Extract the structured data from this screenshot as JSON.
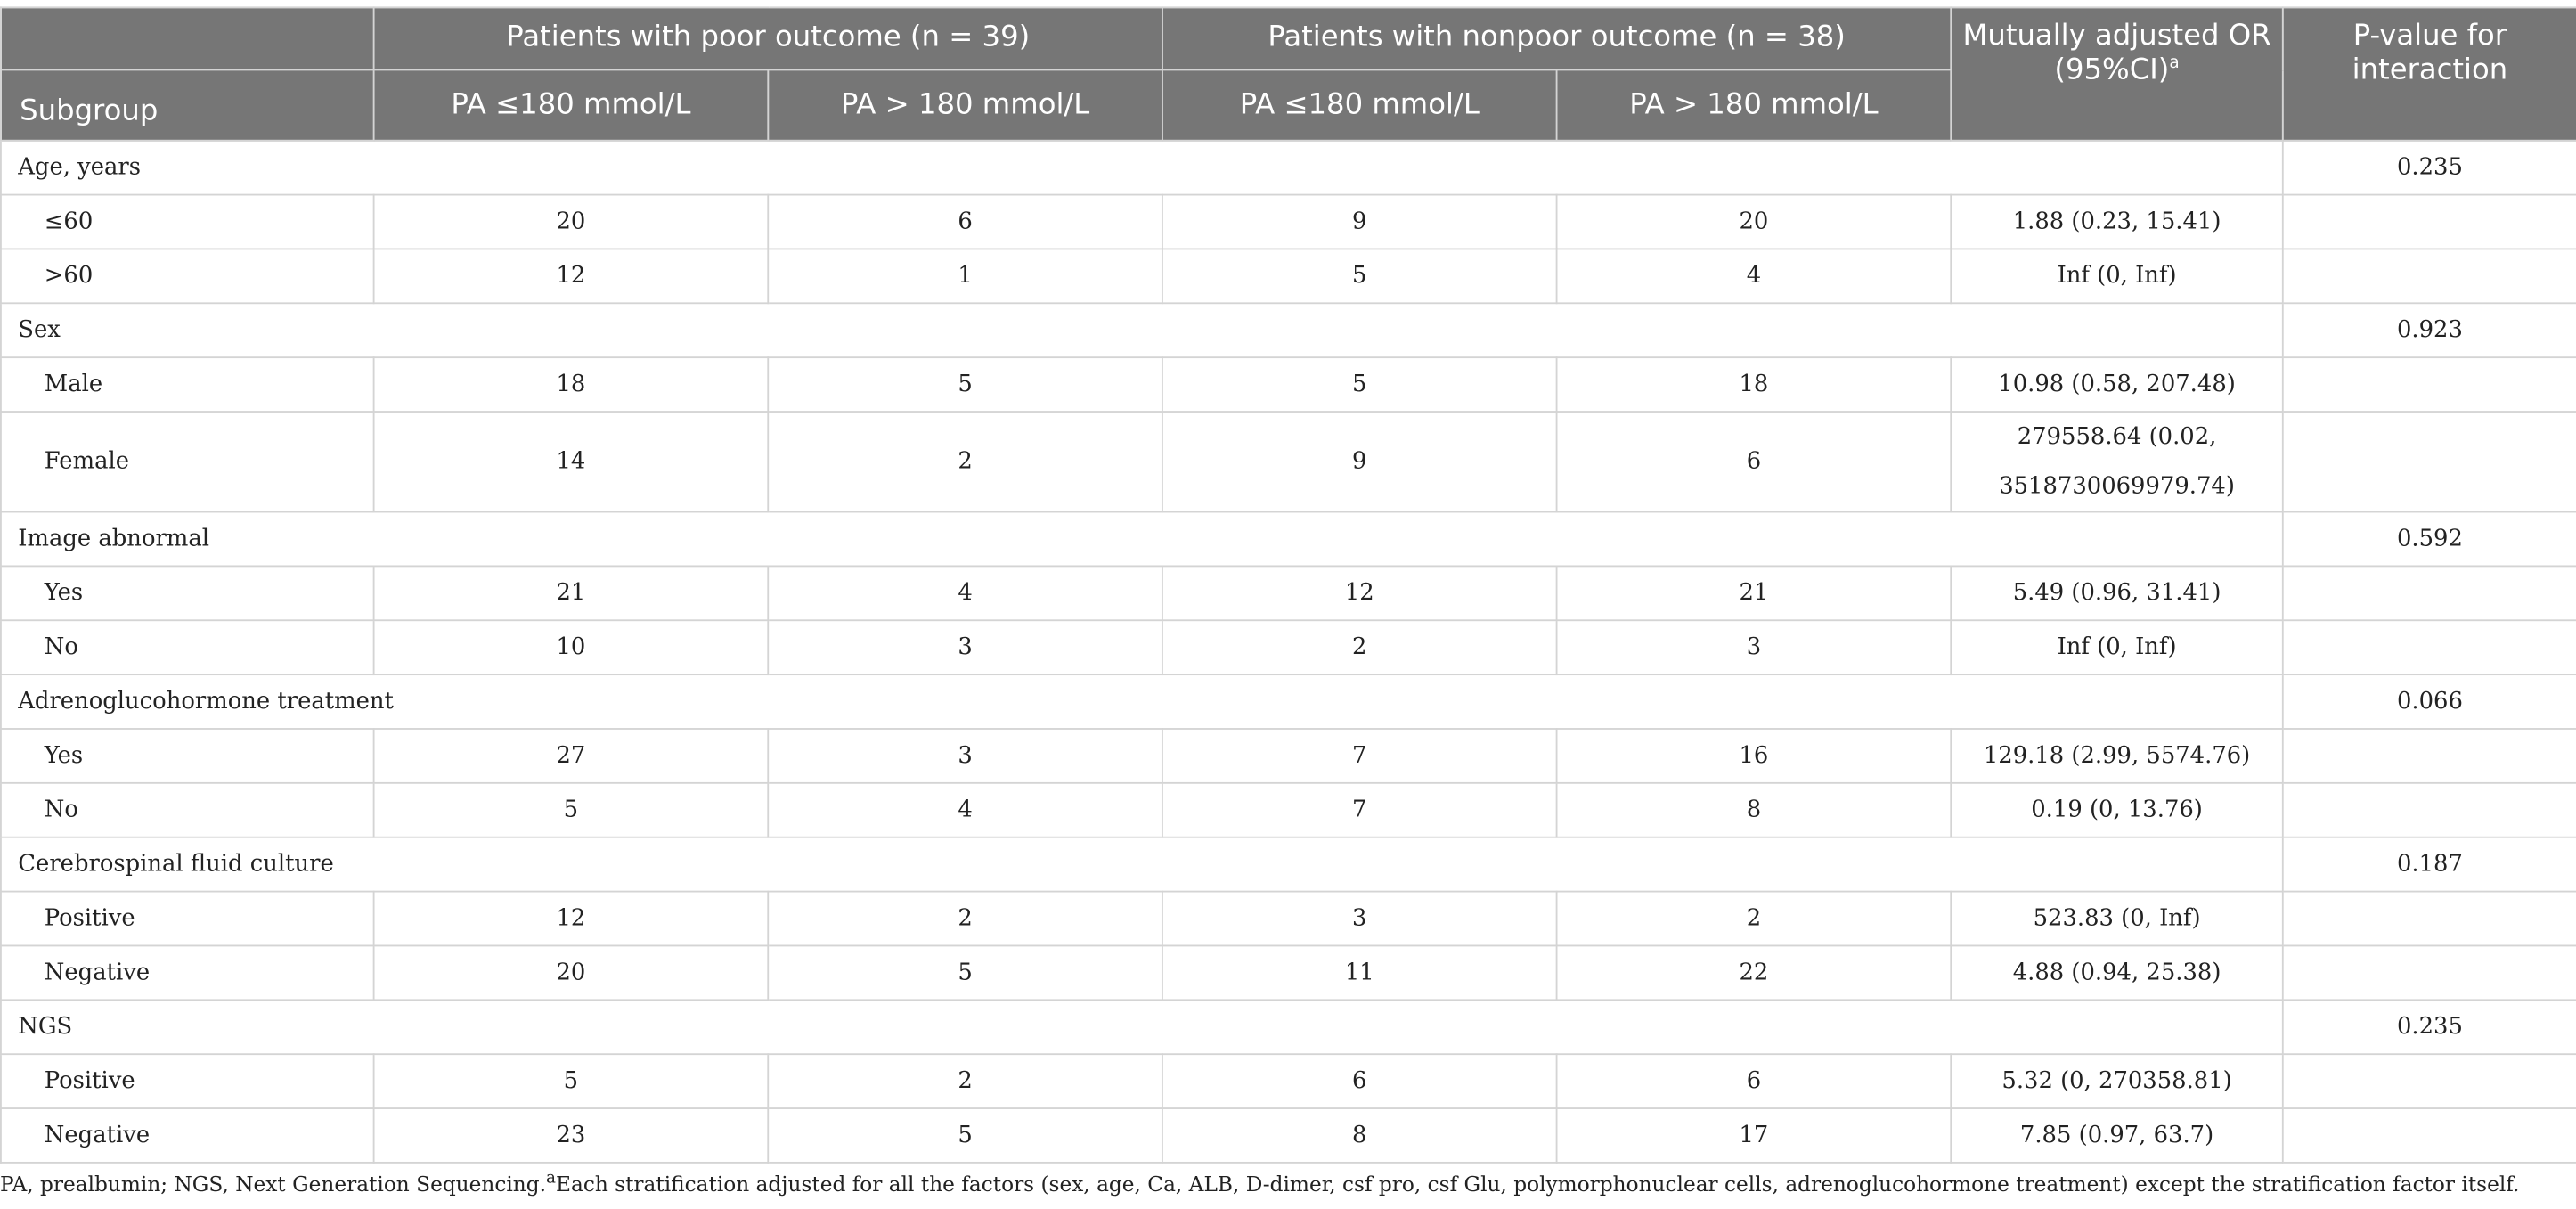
{
  "header": {
    "poor_group": "Patients with poor outcome (n = 39)",
    "nonpoor_group": "Patients with nonpoor outcome (n = 38)",
    "or_label": "Mutually adjusted OR (95%CI)",
    "or_sup": "a",
    "p_label": "P-value for interaction",
    "subgroup_label": "Subgroup",
    "pa_low": "PA ≤180 mmol/L",
    "pa_high": "PA > 180 mmol/L"
  },
  "groups": [
    {
      "name": "Age, years",
      "p": "0.235",
      "rows": [
        {
          "label": "≤60",
          "poor_low": "20",
          "poor_high": "6",
          "non_low": "9",
          "non_high": "20",
          "or": "1.88 (0.23, 15.41)"
        },
        {
          "label": ">60",
          "poor_low": "12",
          "poor_high": "1",
          "non_low": "5",
          "non_high": "4",
          "or": "Inf (0, Inf)"
        }
      ]
    },
    {
      "name": "Sex",
      "p": "0.923",
      "rows": [
        {
          "label": "Male",
          "poor_low": "18",
          "poor_high": "5",
          "non_low": "5",
          "non_high": "18",
          "or": "10.98 (0.58, 207.48)"
        },
        {
          "label": "Female",
          "poor_low": "14",
          "poor_high": "2",
          "non_low": "9",
          "non_high": "6",
          "or": "279558.64 (0.02, 3518730069979.74)"
        }
      ]
    },
    {
      "name": "Image abnormal",
      "p": "0.592",
      "rows": [
        {
          "label": "Yes",
          "poor_low": "21",
          "poor_high": "4",
          "non_low": "12",
          "non_high": "21",
          "or": "5.49 (0.96, 31.41)"
        },
        {
          "label": "No",
          "poor_low": "10",
          "poor_high": "3",
          "non_low": "2",
          "non_high": "3",
          "or": "Inf (0, Inf)"
        }
      ]
    },
    {
      "name": "Adrenoglucohormone treatment",
      "p": "0.066",
      "rows": [
        {
          "label": "Yes",
          "poor_low": "27",
          "poor_high": "3",
          "non_low": "7",
          "non_high": "16",
          "or": "129.18 (2.99, 5574.76)"
        },
        {
          "label": "No",
          "poor_low": "5",
          "poor_high": "4",
          "non_low": "7",
          "non_high": "8",
          "or": "0.19 (0, 13.76)"
        }
      ]
    },
    {
      "name": "Cerebrospinal fluid culture",
      "p": "0.187",
      "rows": [
        {
          "label": "Positive",
          "poor_low": "12",
          "poor_high": "2",
          "non_low": "3",
          "non_high": "2",
          "or": "523.83 (0, Inf)"
        },
        {
          "label": "Negative",
          "poor_low": "20",
          "poor_high": "5",
          "non_low": "11",
          "non_high": "22",
          "or": "4.88 (0.94, 25.38)"
        }
      ]
    },
    {
      "name": "NGS",
      "p": "0.235",
      "rows": [
        {
          "label": "Positive",
          "poor_low": "5",
          "poor_high": "2",
          "non_low": "6",
          "non_high": "6",
          "or": "5.32 (0, 270358.81)"
        },
        {
          "label": "Negative",
          "poor_low": "23",
          "poor_high": "5",
          "non_low": "8",
          "non_high": "17",
          "or": "7.85 (0.97, 63.7)"
        }
      ]
    }
  ],
  "footnote": {
    "text_a": "PA, prealbumin; NGS, Next Generation Sequencing.",
    "sup": "a",
    "text_b": "Each stratification adjusted for all the factors (sex, age, Ca, ALB, D-dimer, csf pro, csf Glu, polymorphonuclear cells, adrenoglucohormone treatment) except the stratification factor itself."
  }
}
